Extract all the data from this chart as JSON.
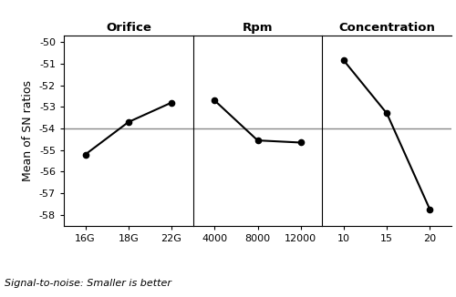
{
  "panels": [
    {
      "title": "Orifice",
      "x_labels": [
        "16G",
        "18G",
        "22G"
      ],
      "x_positions": [
        0,
        1,
        2
      ],
      "y_values": [
        -55.2,
        -53.7,
        -52.8
      ]
    },
    {
      "title": "Rpm",
      "x_labels": [
        "4000",
        "8000",
        "12000"
      ],
      "x_positions": [
        0,
        1,
        2
      ],
      "y_values": [
        -52.7,
        -54.55,
        -54.65
      ]
    },
    {
      "title": "Concentration",
      "x_labels": [
        "10",
        "15",
        "20"
      ],
      "x_positions": [
        0,
        1,
        2
      ],
      "y_values": [
        -50.85,
        -53.3,
        -57.75
      ]
    }
  ],
  "ylim": [
    -58.5,
    -49.7
  ],
  "yticks": [
    -58,
    -57,
    -56,
    -55,
    -54,
    -53,
    -52,
    -51,
    -50
  ],
  "hline_y": -54.0,
  "hline_color": "#888888",
  "line_color": "#000000",
  "marker": "o",
  "markersize": 4.5,
  "linewidth": 1.5,
  "ylabel": "Mean of SN ratios",
  "footnote": "Signal-to-noise: Smaller is better",
  "background_color": "#ffffff",
  "panel_title_fontsize": 9.5,
  "axis_label_fontsize": 9,
  "tick_fontsize": 8,
  "footnote_fontsize": 8
}
